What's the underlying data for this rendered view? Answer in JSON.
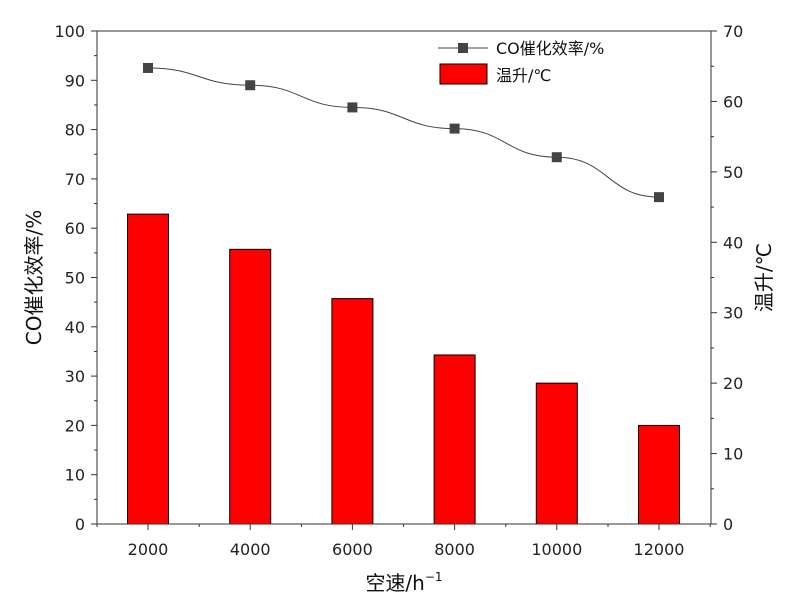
{
  "chart_data": {
    "type": "bar+line",
    "categories": [
      "2000",
      "4000",
      "6000",
      "8000",
      "10000",
      "12000"
    ],
    "series": [
      {
        "name": "CO催化效率/%",
        "kind": "line",
        "axis": "left",
        "color": "#444444",
        "values": [
          92.5,
          89.0,
          84.5,
          80.2,
          74.4,
          66.3
        ]
      },
      {
        "name": "温升/℃",
        "kind": "bar",
        "axis": "right",
        "color": "#ff0000",
        "values": [
          44.0,
          39.0,
          32.0,
          24.0,
          20.0,
          14.0
        ]
      }
    ],
    "xlabel_main": "空速/h",
    "xlabel_sup": "−1",
    "ylabel_left": "CO催化效率/%",
    "ylabel_right": "温升/℃",
    "ylim_left": [
      0,
      100
    ],
    "ylim_right": [
      0,
      70
    ],
    "yticks_left": [
      "0",
      "10",
      "20",
      "30",
      "40",
      "50",
      "60",
      "70",
      "80",
      "90",
      "100"
    ],
    "yticks_right": [
      "0",
      "10",
      "20",
      "30",
      "40",
      "50",
      "60",
      "70"
    ],
    "grid": false,
    "legend_position": "top-right"
  }
}
